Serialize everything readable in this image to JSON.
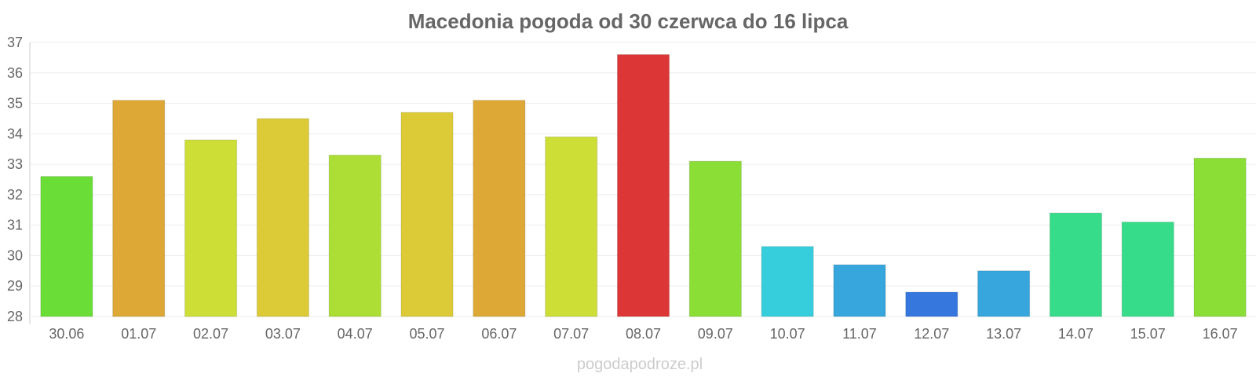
{
  "chart_data": {
    "type": "bar",
    "title": "Macedonia pogoda od 30 czerwca do 16 lipca",
    "xlabel": "",
    "ylabel": "",
    "ylim": [
      28,
      37
    ],
    "yticks": [
      28,
      29,
      30,
      31,
      32,
      33,
      34,
      35,
      36,
      37
    ],
    "grid": true,
    "legend": "none",
    "categories": [
      "30.06",
      "01.07",
      "02.07",
      "03.07",
      "04.07",
      "05.07",
      "06.07",
      "07.07",
      "08.07",
      "09.07",
      "10.07",
      "11.07",
      "12.07",
      "13.07",
      "14.07",
      "15.07",
      "16.07"
    ],
    "values": [
      32.6,
      35.1,
      33.8,
      34.5,
      33.3,
      34.7,
      35.1,
      33.9,
      36.6,
      33.1,
      30.3,
      29.7,
      28.8,
      29.5,
      31.4,
      31.1,
      33.2
    ],
    "colors": [
      "#6ade37",
      "#dda836",
      "#cdde36",
      "#dccb37",
      "#acde36",
      "#dccb37",
      "#dda836",
      "#cdde36",
      "#dd3636",
      "#8bde36",
      "#36cedd",
      "#36a6dd",
      "#3577dc",
      "#36a6dd",
      "#36dc8a",
      "#36dc8a",
      "#8bde36"
    ]
  },
  "source": "pogodapodroze.pl"
}
